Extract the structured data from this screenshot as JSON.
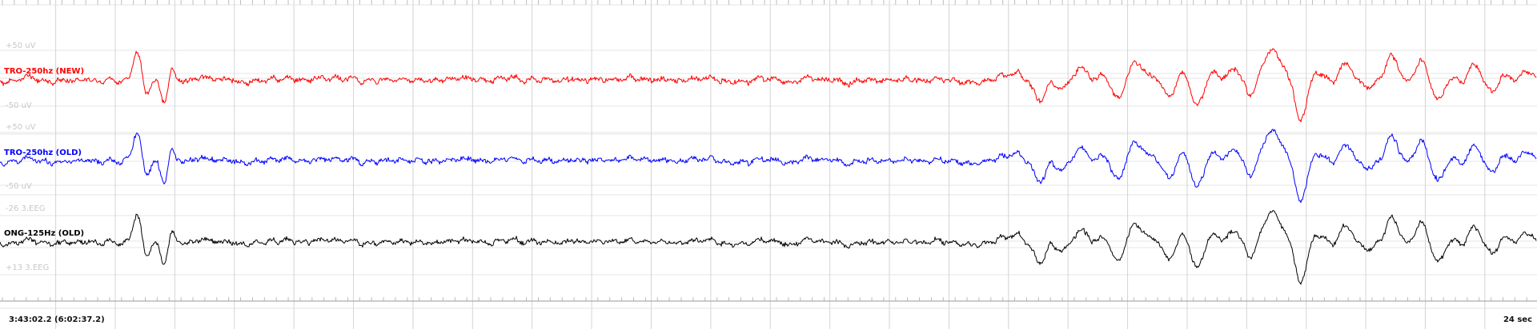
{
  "channels": [
    {
      "label": "TRO-250hz (NEW)",
      "color": "#ff0000",
      "scale_pos": "+50 uV",
      "scale_neg": "-50 uV"
    },
    {
      "label": "TRO-250hz (OLD)",
      "color": "#0000ff",
      "scale_pos": "+50 uV",
      "scale_neg": "-50 uV"
    },
    {
      "label": "ONG-125Hz (OLD)",
      "color": "#000000",
      "scale_pos": "-26 3.EEG",
      "scale_neg": "+13 3.EEG"
    }
  ],
  "time_position": "3:43:02.2 (6:02:37.2)",
  "window_duration": "24 sec",
  "colors": {
    "grid_major": "#d4d4d4",
    "grid_minor": "#bdbdbd",
    "background": "#ffffff"
  }
}
